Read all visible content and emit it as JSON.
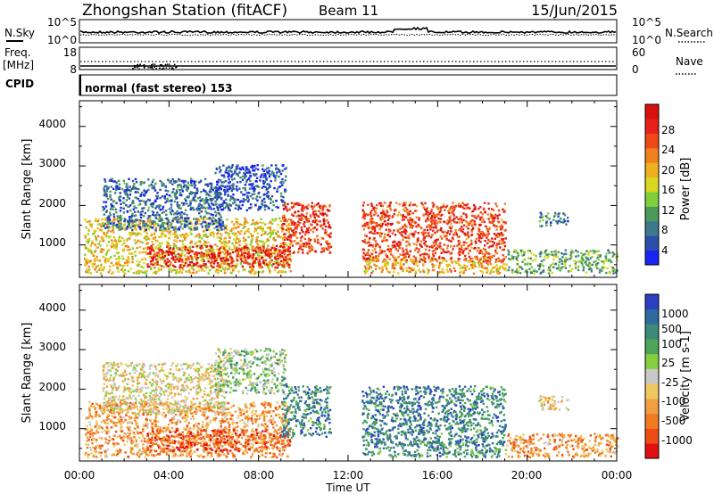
{
  "header": {
    "station": "Zhongshan Station (fitACF)",
    "beam": "Beam 11",
    "date": "15/Jun/2015"
  },
  "params": {
    "nsky_label": "N.Sky",
    "nsky_ticks": [
      "10^5",
      "10^0"
    ],
    "nsearch_ticks": [
      "10^5",
      "10^0"
    ],
    "nsearch_label": "N.Search",
    "freq_label": "Freq.",
    "freq_unit": "[MHz]",
    "freq_ticks": [
      "18",
      "8"
    ],
    "nave_ticks": [
      "60",
      "0"
    ],
    "nave_label": "Nave",
    "cpid_label": "CPID",
    "cpid_value": "normal (fast stereo) 153"
  },
  "time_axis": {
    "ticks": [
      "00:00",
      "04:00",
      "08:00",
      "12:00",
      "16:00",
      "20:00",
      "00:00"
    ],
    "label": "Time UT"
  },
  "chart_data": [
    {
      "type": "heatmap",
      "title": "",
      "xlabel": "Time UT",
      "ylabel": "Slant Range [km]",
      "x_range_hours": [
        0,
        24
      ],
      "ylim": [
        180,
        4650
      ],
      "y_ticks": [
        "1000",
        "2000",
        "3000",
        "4000"
      ],
      "colorbar": {
        "label": "Power [dB]",
        "ticks": [
          "4",
          "8",
          "12",
          "16",
          "20",
          "24",
          "28"
        ],
        "range": [
          0,
          32
        ],
        "colors": [
          "#1a24f0",
          "#2a4fa8",
          "#3d7a8c",
          "#4c9a5a",
          "#7fcf3a",
          "#d8d820",
          "#f0b020",
          "#f08020",
          "#f04818",
          "#e8201a",
          "#d81010"
        ]
      },
      "regions": [
        {
          "t0": 0.2,
          "t1": 9.4,
          "r0": 300,
          "r1": 1700,
          "level": 0.55
        },
        {
          "t0": 3.0,
          "t1": 9.4,
          "r0": 450,
          "r1": 1000,
          "level": 0.9
        },
        {
          "t0": 1.0,
          "t1": 6.5,
          "r0": 1400,
          "r1": 2700,
          "level": 0.2
        },
        {
          "t0": 6.0,
          "t1": 9.2,
          "r0": 1900,
          "r1": 3050,
          "level": 0.15
        },
        {
          "t0": 9.0,
          "t1": 11.2,
          "r0": 800,
          "r1": 2100,
          "level": 0.82
        },
        {
          "t0": 12.6,
          "t1": 19.0,
          "r0": 600,
          "r1": 2100,
          "level": 0.8
        },
        {
          "t0": 12.6,
          "t1": 19.0,
          "r0": 300,
          "r1": 700,
          "level": 0.6
        },
        {
          "t0": 19.0,
          "t1": 24.0,
          "r0": 300,
          "r1": 900,
          "level": 0.35
        },
        {
          "t0": 20.5,
          "t1": 21.8,
          "r0": 1500,
          "r1": 1850,
          "level": 0.25
        }
      ]
    },
    {
      "type": "heatmap",
      "title": "",
      "xlabel": "Time UT",
      "ylabel": "Slant Range [km]",
      "x_range_hours": [
        0,
        24
      ],
      "ylim": [
        180,
        4650
      ],
      "y_ticks": [
        "1000",
        "2000",
        "3000",
        "4000"
      ],
      "colorbar": {
        "label": "Velocity [m s-1]",
        "ticks": [
          "1000",
          "500",
          "100",
          "25",
          "-25",
          "-100",
          "-500",
          "-1000"
        ],
        "colors": [
          "#2a40c0",
          "#2e6aa0",
          "#3e8a78",
          "#4ea45a",
          "#86d040",
          "#c8c8c8",
          "#f0c860",
          "#f0a040",
          "#f07c20",
          "#f04c18",
          "#e01010"
        ]
      },
      "regions": [
        {
          "t0": 0.2,
          "t1": 9.4,
          "r0": 300,
          "r1": 1700,
          "level": 0.3
        },
        {
          "t0": 3.0,
          "t1": 9.4,
          "r0": 450,
          "r1": 1000,
          "level": 0.15
        },
        {
          "t0": 1.0,
          "t1": 6.5,
          "r0": 1400,
          "r1": 2700,
          "level": 0.45
        },
        {
          "t0": 6.0,
          "t1": 9.2,
          "r0": 1900,
          "r1": 3050,
          "level": 0.6
        },
        {
          "t0": 9.0,
          "t1": 11.2,
          "r0": 800,
          "r1": 2100,
          "level": 0.78
        },
        {
          "t0": 12.6,
          "t1": 19.0,
          "r0": 600,
          "r1": 2100,
          "level": 0.8
        },
        {
          "t0": 12.6,
          "t1": 19.0,
          "r0": 300,
          "r1": 700,
          "level": 0.75
        },
        {
          "t0": 19.0,
          "t1": 24.0,
          "r0": 300,
          "r1": 900,
          "level": 0.3
        },
        {
          "t0": 20.5,
          "t1": 21.8,
          "r0": 1500,
          "r1": 1850,
          "level": 0.4
        }
      ]
    }
  ]
}
